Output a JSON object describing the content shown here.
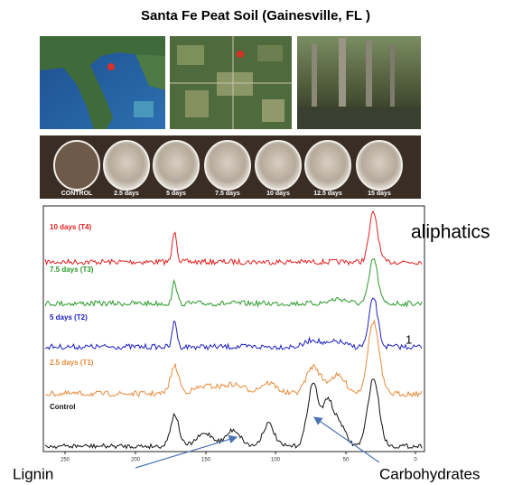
{
  "header": {
    "title": "Santa Fe Peat Soil (Gainesville, FL )"
  },
  "jars": {
    "labels": [
      "CONTROL",
      "2.5 days",
      "5 days",
      "7.5 days",
      "10 days",
      "12.5 days",
      "15 days"
    ]
  },
  "spectra": {
    "labels": [
      "10 days (T4)",
      "7.5 days (T3)",
      "5 days (T2)",
      "2.5 days (T1)",
      "Control"
    ],
    "x_ticks": [
      "250",
      "200",
      "150",
      "100",
      "50",
      "0"
    ]
  },
  "annotations": {
    "aliphatics": "aliphatics",
    "mark": "1",
    "lignin": "Lignin",
    "carbohydrates": "Carbohydrates"
  }
}
